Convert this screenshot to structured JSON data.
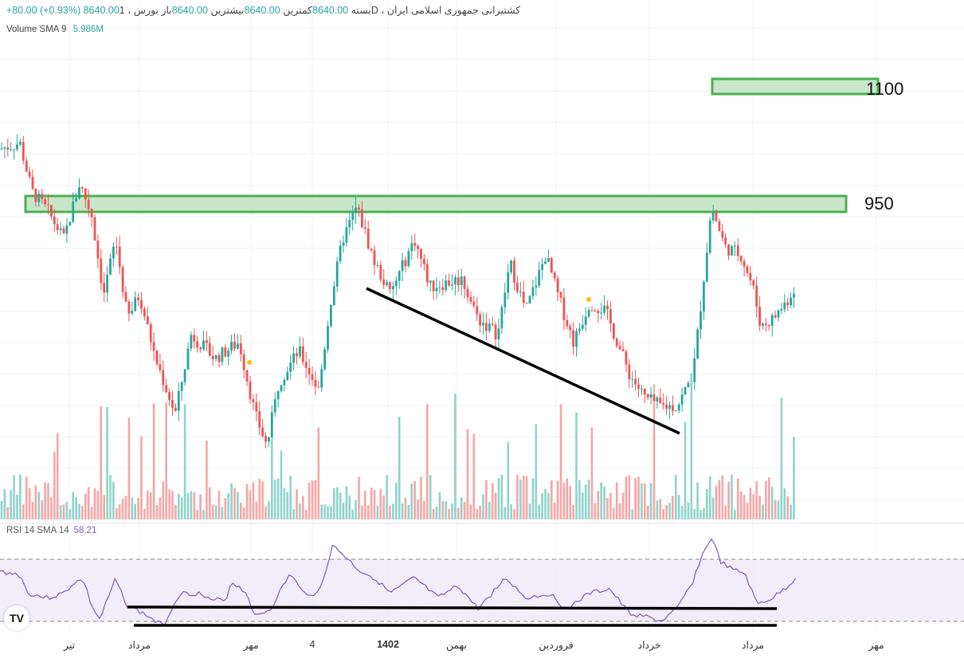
{
  "header": {
    "title": "کشتیرانی جمهوری اسلامی ایران",
    "interval": "1D",
    "exchange": "بورس",
    "open_label": "باز",
    "open": "8640.00",
    "high_label": "بیشترین",
    "high": "8640.00",
    "low_label": "کمترین",
    "low": "8640.00",
    "close_label": "بسته",
    "close": "8640.00",
    "change": "+80.00 (+0.93%)"
  },
  "volume": {
    "label": "Volume SMA 9",
    "value": "5.986M"
  },
  "rsi": {
    "label": "RSI 14 SMA 14",
    "value": "58.21"
  },
  "levels": {
    "upper": "1100",
    "lower": "950"
  },
  "logo": "TV",
  "xaxis": [
    "تیر",
    "مرداد",
    "مهر",
    "4",
    "1402",
    "بهمن",
    "فروردین",
    "خرداد",
    "مرداد",
    "مهر"
  ],
  "colors": {
    "up": "#26a69a",
    "down": "#ef5350",
    "zone": "#4caf50",
    "rsi": "#7e57c2"
  },
  "chart_data": {
    "type": "candlestick",
    "note": "approximate price path (bar index, price)",
    "price_path": [
      [
        5,
        1022
      ],
      [
        25,
        1028
      ],
      [
        40,
        966
      ],
      [
        60,
        941
      ],
      [
        80,
        905
      ],
      [
        100,
        977
      ],
      [
        115,
        936
      ],
      [
        130,
        834
      ],
      [
        145,
        905
      ],
      [
        160,
        803
      ],
      [
        175,
        834
      ],
      [
        195,
        752
      ],
      [
        220,
        681
      ],
      [
        240,
        783
      ],
      [
        270,
        752
      ],
      [
        300,
        773
      ],
      [
        320,
        681
      ],
      [
        335,
        640
      ],
      [
        350,
        722
      ],
      [
        375,
        762
      ],
      [
        400,
        711
      ],
      [
        415,
        824
      ],
      [
        430,
        905
      ],
      [
        448,
        946
      ],
      [
        470,
        875
      ],
      [
        490,
        834
      ],
      [
        520,
        905
      ],
      [
        540,
        844
      ],
      [
        580,
        854
      ],
      [
        600,
        803
      ],
      [
        625,
        783
      ],
      [
        640,
        875
      ],
      [
        660,
        813
      ],
      [
        685,
        885
      ],
      [
        700,
        834
      ],
      [
        720,
        773
      ],
      [
        740,
        824
      ],
      [
        760,
        813
      ],
      [
        790,
        732
      ],
      [
        810,
        701
      ],
      [
        830,
        691
      ],
      [
        850,
        691
      ],
      [
        870,
        732
      ],
      [
        880,
        824
      ],
      [
        893,
        946
      ],
      [
        910,
        895
      ],
      [
        930,
        885
      ],
      [
        945,
        844
      ],
      [
        955,
        793
      ],
      [
        970,
        803
      ],
      [
        990,
        829
      ],
      [
        1000,
        849
      ]
    ],
    "rsi_path": [
      [
        0,
        62
      ],
      [
        25,
        60
      ],
      [
        35,
        48
      ],
      [
        60,
        45
      ],
      [
        80,
        48
      ],
      [
        95,
        56
      ],
      [
        105,
        56
      ],
      [
        115,
        40
      ],
      [
        125,
        31
      ],
      [
        135,
        44
      ],
      [
        145,
        57
      ],
      [
        160,
        40
      ],
      [
        180,
        35
      ],
      [
        205,
        27
      ],
      [
        225,
        48
      ],
      [
        250,
        48
      ],
      [
        265,
        43
      ],
      [
        285,
        45
      ],
      [
        290,
        56
      ],
      [
        310,
        48
      ],
      [
        320,
        33
      ],
      [
        340,
        38
      ],
      [
        350,
        48
      ],
      [
        365,
        61
      ],
      [
        380,
        48
      ],
      [
        400,
        48
      ],
      [
        418,
        79
      ],
      [
        435,
        71
      ],
      [
        450,
        63
      ],
      [
        470,
        58
      ],
      [
        490,
        48
      ],
      [
        520,
        58
      ],
      [
        550,
        45
      ],
      [
        575,
        53
      ],
      [
        600,
        38
      ],
      [
        635,
        58
      ],
      [
        660,
        45
      ],
      [
        690,
        48
      ],
      [
        710,
        38
      ],
      [
        740,
        48
      ],
      [
        765,
        51
      ],
      [
        790,
        35
      ],
      [
        810,
        33
      ],
      [
        830,
        30
      ],
      [
        850,
        38
      ],
      [
        870,
        56
      ],
      [
        880,
        71
      ],
      [
        893,
        84
      ],
      [
        905,
        68
      ],
      [
        920,
        63
      ],
      [
        935,
        61
      ],
      [
        950,
        41
      ],
      [
        970,
        45
      ],
      [
        990,
        53
      ],
      [
        1000,
        59
      ]
    ],
    "rsi_bands": [
      30,
      70
    ]
  }
}
